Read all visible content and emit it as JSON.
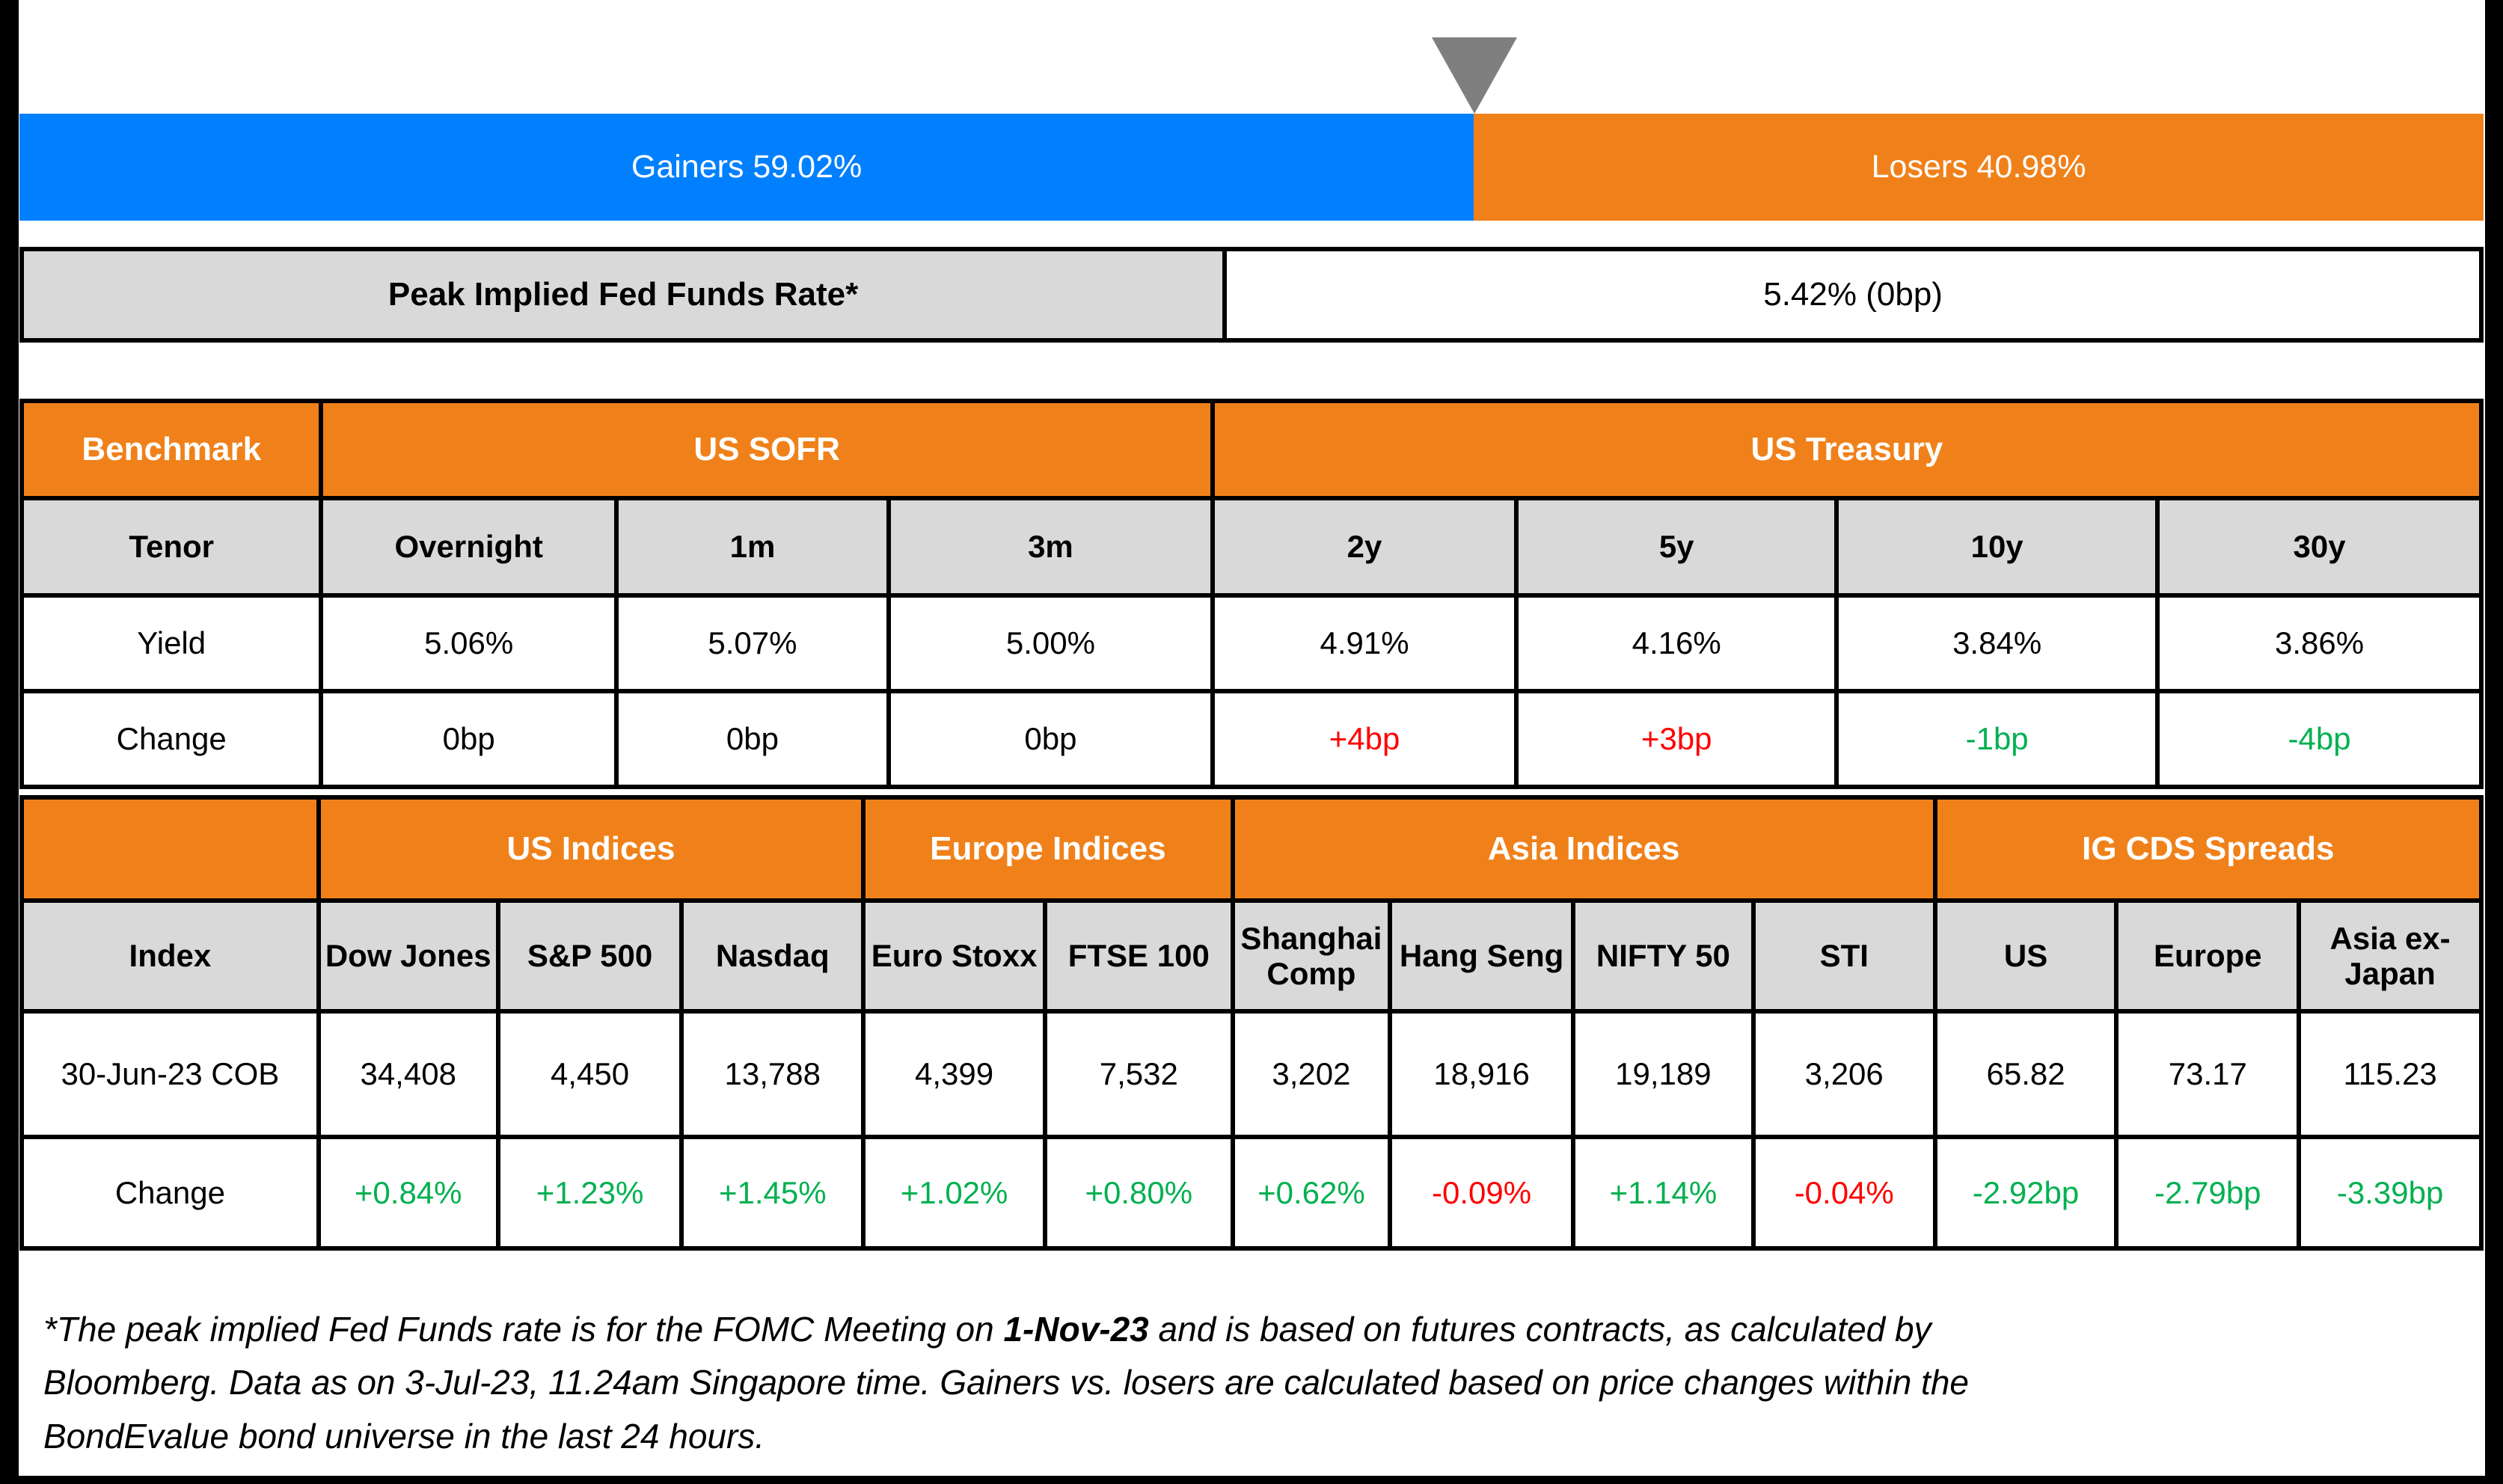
{
  "colors": {
    "gainers_blue": "#0080fe",
    "losers_orange": "#f0811a",
    "header_orange": "#f0811a",
    "header_gray": "#d9d9d9",
    "positive_green": "#00b050",
    "negative_red": "#ff0000",
    "marker_gray": "#7f7f7f",
    "border_black": "#000000"
  },
  "gainers_losers_bar": {
    "gainers_label": "Gainers 59.02%",
    "losers_label": "Losers 40.98%",
    "gainers_pct": 59.02,
    "losers_pct": 40.98
  },
  "fed_funds": {
    "label": "Peak Implied Fed Funds Rate*",
    "value": "5.42% (0bp)"
  },
  "benchmark_table": {
    "corner_label": "Benchmark",
    "group_us_sofr": "US SOFR",
    "group_us_treasury": "US Treasury",
    "tenor_label": "Tenor",
    "yield_label": "Yield",
    "change_label": "Change",
    "tenors": [
      "Overnight",
      "1m",
      "3m",
      "2y",
      "5y",
      "10y",
      "30y"
    ],
    "yields": [
      "5.06%",
      "5.07%",
      "5.00%",
      "4.91%",
      "4.16%",
      "3.84%",
      "3.86%"
    ],
    "changes": [
      "0bp",
      "0bp",
      "0bp",
      "+4bp",
      "+3bp",
      "-1bp",
      "-4bp"
    ]
  },
  "indices_table": {
    "group_us": "US Indices",
    "group_europe": "Europe Indices",
    "group_asia": "Asia Indices",
    "group_cds": "IG CDS Spreads",
    "index_label": "Index",
    "cob_label": "30-Jun-23 COB",
    "change_label": "Change",
    "indices": [
      "Dow Jones",
      "S&P 500",
      "Nasdaq",
      "Euro Stoxx",
      "FTSE 100",
      "Shanghai Comp",
      "Hang Seng",
      "NIFTY 50",
      "STI",
      "US",
      "Europe",
      "Asia ex-Japan"
    ],
    "cob_values": [
      "34,408",
      "4,450",
      "13,788",
      "4,399",
      "7,532",
      "3,202",
      "18,916",
      "19,189",
      "3,206",
      "65.82",
      "73.17",
      "115.23"
    ],
    "change_values": [
      "+0.84%",
      "+1.23%",
      "+1.45%",
      "+1.02%",
      "+0.80%",
      "+0.62%",
      "-0.09%",
      "+1.14%",
      "-0.04%",
      "-2.92bp",
      "-2.79bp",
      "-3.39bp"
    ]
  },
  "footnote": {
    "line1_pre_bold": "*The peak implied Fed Funds rate is for the FOMC Meeting on ",
    "line1_bold": "1-Nov-23",
    "line1_post_bold": " and is based on futures contracts, as calculated by",
    "line2": "Bloomberg. Data as on 3-Jul-23, 11.24am Singapore time. Gainers vs. losers are calculated based on price changes within the",
    "line3": "BondEvalue bond universe in the last 24 hours."
  },
  "chart_data": [
    {
      "type": "bar",
      "title": "Gainers vs Losers (price changes in BondEvalue bond universe, last 24 hours)",
      "orientation": "horizontal-stacked",
      "categories": [
        "Gainers",
        "Losers"
      ],
      "values": [
        59.02,
        40.98
      ],
      "unit": "%",
      "annotations": [
        "marker triangle at 59.02% split"
      ]
    },
    {
      "type": "table",
      "title": "Peak Implied Fed Funds Rate*",
      "rows": [
        [
          "Peak Implied Fed Funds Rate*",
          "5.42% (0bp)"
        ]
      ]
    },
    {
      "type": "table",
      "title": "Benchmark",
      "column_groups": [
        {
          "label": "US SOFR",
          "span": 3
        },
        {
          "label": "US Treasury",
          "span": 4
        }
      ],
      "columns": [
        "Overnight",
        "1m",
        "3m",
        "2y",
        "5y",
        "10y",
        "30y"
      ],
      "series": [
        {
          "name": "Yield",
          "values": [
            "5.06%",
            "5.07%",
            "5.00%",
            "4.91%",
            "4.16%",
            "3.84%",
            "3.86%"
          ]
        },
        {
          "name": "Change",
          "values": [
            "0bp",
            "0bp",
            "0bp",
            "+4bp",
            "+3bp",
            "-1bp",
            "-4bp"
          ]
        }
      ]
    },
    {
      "type": "table",
      "title": "Indices and IG CDS Spreads",
      "column_groups": [
        {
          "label": "US Indices",
          "span": 3
        },
        {
          "label": "Europe Indices",
          "span": 2
        },
        {
          "label": "Asia Indices",
          "span": 4
        },
        {
          "label": "IG CDS Spreads",
          "span": 3
        }
      ],
      "columns": [
        "Dow Jones",
        "S&P 500",
        "Nasdaq",
        "Euro Stoxx",
        "FTSE 100",
        "Shanghai Comp",
        "Hang Seng",
        "NIFTY 50",
        "STI",
        "US",
        "Europe",
        "Asia ex-Japan"
      ],
      "series": [
        {
          "name": "30-Jun-23 COB",
          "values": [
            34408,
            4450,
            13788,
            4399,
            7532,
            3202,
            18916,
            19189,
            3206,
            65.82,
            73.17,
            115.23
          ]
        },
        {
          "name": "Change",
          "values": [
            "+0.84%",
            "+1.23%",
            "+1.45%",
            "+1.02%",
            "+0.80%",
            "+0.62%",
            "-0.09%",
            "+1.14%",
            "-0.04%",
            "-2.92bp",
            "-2.79bp",
            "-3.39bp"
          ]
        }
      ]
    }
  ]
}
